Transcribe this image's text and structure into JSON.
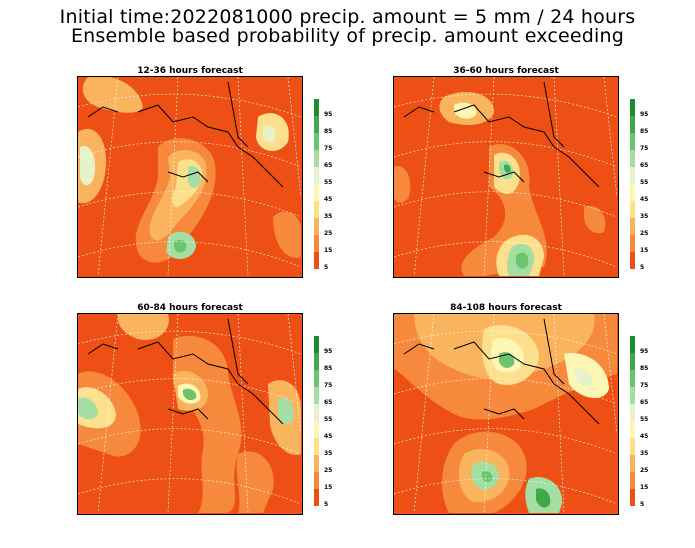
{
  "title_line1": "Initial time:2022081000 precip. amount =  5 mm / 24 hours",
  "title_line2": "Ensemble based probability of precip. amount exceeding",
  "legend": {
    "labels": [
      "95",
      "85",
      "75",
      "65",
      "55",
      "45",
      "35",
      "25",
      "15",
      "5"
    ],
    "colors": [
      "#1e8c2c",
      "#3ea84a",
      "#6cc46e",
      "#a4dea2",
      "#e6f2c8",
      "#fdf6b4",
      "#fde08e",
      "#fbb45e",
      "#f6893c",
      "#ee4f14"
    ]
  },
  "panels": [
    {
      "title": "12-36 hours forecast"
    },
    {
      "title": "36-60 hours forecast"
    },
    {
      "title": "60-84 hours forecast"
    },
    {
      "title": "84-108 hours forecast"
    }
  ]
}
